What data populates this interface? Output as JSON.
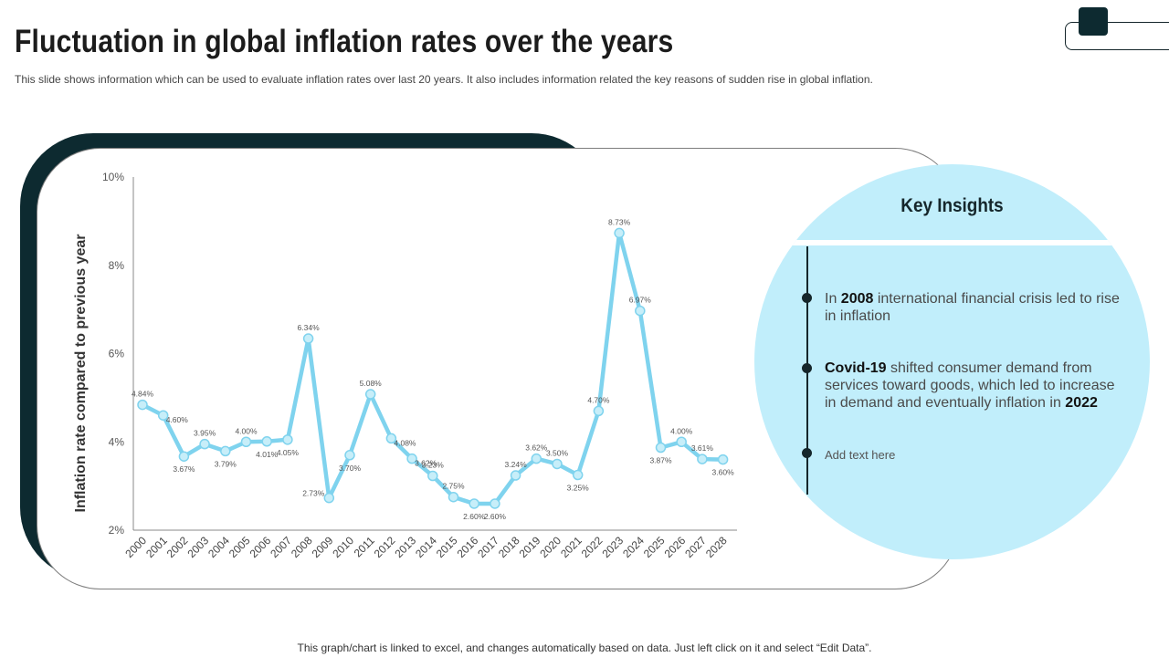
{
  "title": "Fluctuation in global inflation rates over the years",
  "subtitle": "This slide shows information which can be used to evaluate inflation rates over last 20 years. It also includes information related the key reasons of sudden rise in global inflation.",
  "footer": "This graph/chart is linked to excel,  and changes automatically based on data. Just left click on it and select “Edit Data”.",
  "colors": {
    "dark": "#0d2a30",
    "line": "#7fd3ee",
    "marker": "#c7eef9",
    "panel": "#c1eefb"
  },
  "insights": {
    "title": "Key Insights",
    "item1": {
      "pre": "In ",
      "bold": "2008",
      "post": " international financial crisis led to rise in inflation"
    },
    "item2": {
      "bold": "Covid-19",
      "post": " shifted consumer demand from services toward goods, which led to increase in demand and eventually  inflation in ",
      "bold2": "2022"
    },
    "item3": "Add text here"
  },
  "chart_data": {
    "type": "line",
    "title": "",
    "xlabel": "",
    "ylabel": "Inflation rate compared to previous year",
    "ylim": [
      2,
      10
    ],
    "yticks": [
      2,
      4,
      6,
      8,
      10
    ],
    "ytick_labels": [
      "2%",
      "4%",
      "6%",
      "8%",
      "10%"
    ],
    "categories": [
      "2000",
      "2001",
      "2002",
      "2003",
      "2004",
      "2005",
      "2006",
      "2007",
      "2008",
      "2009",
      "2010",
      "2011",
      "2012",
      "2013",
      "2014",
      "2015",
      "2016",
      "2017",
      "2018",
      "2019",
      "2020",
      "2021",
      "2022",
      "2023",
      "2024",
      "2025",
      "2026",
      "2027",
      "2028"
    ],
    "values": [
      4.84,
      4.6,
      3.67,
      3.95,
      3.79,
      4.0,
      4.01,
      4.05,
      6.34,
      2.73,
      3.7,
      5.08,
      4.08,
      3.62,
      3.23,
      2.75,
      2.6,
      2.6,
      3.24,
      3.62,
      3.5,
      3.25,
      4.7,
      8.73,
      6.97,
      3.87,
      4.0,
      3.61,
      3.6
    ],
    "data_labels": [
      "4.84%",
      "4.60%",
      "3.67%",
      "3.95%",
      "3.79%",
      "4.00%",
      "4.01%",
      "4.05%",
      "6.34%",
      "2.73%",
      "3.70%",
      "5.08%",
      "4.08%",
      "3.62%",
      "3.23%",
      "2.75%",
      "2.60%",
      "2.60%",
      "3.24%",
      "3.62%",
      "3.50%",
      "3.25%",
      "4.70%",
      "8.73%",
      "6.97%",
      "3.87%",
      "4.00%",
      "3.61%",
      "3.60%"
    ],
    "label_positions": [
      "above",
      "right",
      "below",
      "above",
      "below",
      "above",
      "below",
      "below",
      "above",
      "left",
      "below",
      "above",
      "right",
      "right",
      "above",
      "above",
      "below",
      "below",
      "above",
      "above",
      "above",
      "below",
      "above",
      "above",
      "above",
      "below",
      "above",
      "above",
      "below"
    ],
    "grid": false
  }
}
